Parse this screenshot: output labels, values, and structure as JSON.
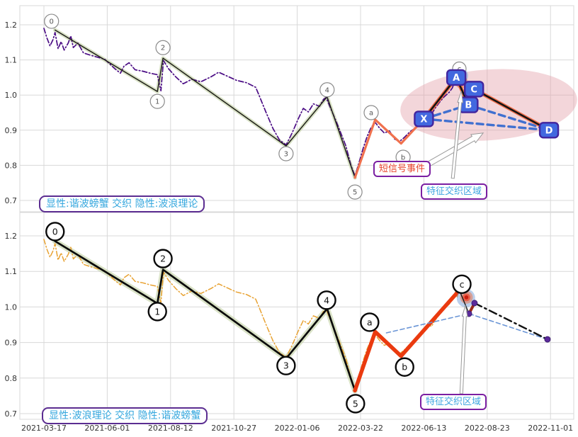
{
  "axes": {
    "x_dates": [
      "2021-03-17",
      "2021-06-01",
      "2021-08-12",
      "2021-10-27",
      "2022-01-06",
      "2022-03-22",
      "2022-06-13",
      "2022-08-23",
      "2022-11-01"
    ],
    "y_ticks": [
      "1.2",
      "1.1",
      "1.0",
      "0.9",
      "0.8",
      "0.7"
    ],
    "ylim": [
      0.7,
      1.2
    ]
  },
  "panel_top": {
    "legend": "显性:谐波螃蟹 交织 隐性:波浪理论",
    "annotation_event": "短信号事件",
    "annotation_region": "特征交织区域"
  },
  "panel_bottom": {
    "legend": "显性:波浪理论 交织 隐性:谐波螃蟹",
    "annotation_region": "特征交织区域"
  },
  "colors": {
    "price_top": "#4B0D85",
    "price_bottom": "#E8A232",
    "impulse_top": "#20201A",
    "impulse_bottom": "#0A0A0A",
    "impulse_glow": "#C5D2A8",
    "correction_top": "#F0714E",
    "correction_bottom": "#EA3A0F",
    "crab_black": "#141414",
    "crab_glow": "#F0714E",
    "dashed_blue": "#4070D0",
    "dashed_blue_thin": "#6A95D6",
    "box_fill": "#4268DF",
    "box_border": "#42259E",
    "ellipse_fill": "rgba(228,164,173,0.45)",
    "blue_halo": "rgba(120,160,215,0.50)",
    "purple_dot": "#5B2A9B",
    "dark_red_seg": "#9B2B1A",
    "grid": "#d8d8d8"
  },
  "chart_data": [
    {
      "type": "line",
      "panel": "top",
      "title": "显性:谐波螃蟹 交织 隐性:波浪理论",
      "ylim": [
        0.7,
        1.2
      ],
      "price_points": [
        [
          0.0,
          1.19
        ],
        [
          0.006,
          1.162
        ],
        [
          0.012,
          1.14
        ],
        [
          0.018,
          1.158
        ],
        [
          0.022,
          1.178
        ],
        [
          0.028,
          1.132
        ],
        [
          0.034,
          1.152
        ],
        [
          0.04,
          1.128
        ],
        [
          0.048,
          1.148
        ],
        [
          0.053,
          1.168
        ],
        [
          0.058,
          1.135
        ],
        [
          0.067,
          1.148
        ],
        [
          0.078,
          1.12
        ],
        [
          0.095,
          1.112
        ],
        [
          0.12,
          1.102
        ],
        [
          0.14,
          1.075
        ],
        [
          0.151,
          1.062
        ],
        [
          0.158,
          1.082
        ],
        [
          0.168,
          1.092
        ],
        [
          0.18,
          1.072
        ],
        [
          0.195,
          1.068
        ],
        [
          0.21,
          1.062
        ],
        [
          0.224,
          1.058
        ],
        [
          0.228,
          1.03
        ],
        [
          0.231,
          1.012
        ],
        [
          0.236,
          1.098
        ],
        [
          0.246,
          1.075
        ],
        [
          0.26,
          1.052
        ],
        [
          0.275,
          1.032
        ],
        [
          0.292,
          1.045
        ],
        [
          0.31,
          1.038
        ],
        [
          0.33,
          1.052
        ],
        [
          0.345,
          1.065
        ],
        [
          0.36,
          1.055
        ],
        [
          0.38,
          1.042
        ],
        [
          0.4,
          1.035
        ],
        [
          0.418,
          1.022
        ],
        [
          0.425,
          0.998
        ],
        [
          0.438,
          0.952
        ],
        [
          0.452,
          0.905
        ],
        [
          0.465,
          0.872
        ],
        [
          0.478,
          0.858
        ],
        [
          0.49,
          0.892
        ],
        [
          0.502,
          0.932
        ],
        [
          0.512,
          0.962
        ],
        [
          0.522,
          0.952
        ],
        [
          0.532,
          0.975
        ],
        [
          0.544,
          0.968
        ],
        [
          0.552,
          0.988
        ],
        [
          0.557,
          0.993
        ],
        [
          0.566,
          0.962
        ],
        [
          0.576,
          0.928
        ],
        [
          0.586,
          0.892
        ],
        [
          0.596,
          0.855
        ],
        [
          0.606,
          0.8
        ],
        [
          0.614,
          0.77
        ],
        [
          0.622,
          0.808
        ],
        [
          0.63,
          0.848
        ],
        [
          0.638,
          0.882
        ],
        [
          0.646,
          0.908
        ],
        [
          0.654,
          0.922
        ],
        [
          0.663,
          0.905
        ],
        [
          0.672,
          0.892
        ],
        [
          0.682,
          0.898
        ],
        [
          0.692,
          0.875
        ],
        [
          0.702,
          0.868
        ],
        [
          0.712,
          0.88
        ],
        [
          0.722,
          0.895
        ],
        [
          0.732,
          0.905
        ],
        [
          0.742,
          0.92
        ],
        [
          0.75,
          0.938
        ],
        [
          0.758,
          0.952
        ],
        [
          0.765,
          0.945
        ],
        [
          0.772,
          0.962
        ],
        [
          0.78,
          0.978
        ],
        [
          0.79,
          0.995
        ],
        [
          0.8,
          1.008
        ],
        [
          0.806,
          1.02
        ],
        [
          0.812,
          1.042
        ],
        [
          0.816,
          1.028
        ],
        [
          0.82,
          1.05
        ],
        [
          0.824,
          1.038
        ]
      ],
      "impulse_points": [
        [
          0.022,
          1.185
        ],
        [
          0.224,
          1.01
        ],
        [
          0.235,
          1.105
        ],
        [
          0.478,
          0.855
        ],
        [
          0.559,
          0.995
        ],
        [
          0.614,
          0.765
        ]
      ],
      "correction_points": [
        [
          0.614,
          0.765
        ],
        [
          0.654,
          0.93
        ],
        [
          0.705,
          0.862
        ],
        [
          0.75,
          0.932
        ]
      ],
      "wave_labels": [
        {
          "t": "0",
          "f": 0.015,
          "v": 1.21
        },
        {
          "t": "1",
          "f": 0.224,
          "v": 0.982
        },
        {
          "t": "2",
          "f": 0.235,
          "v": 1.135
        },
        {
          "t": "3",
          "f": 0.478,
          "v": 0.833
        },
        {
          "t": "4",
          "f": 0.559,
          "v": 1.015
        },
        {
          "t": "5",
          "f": 0.614,
          "v": 0.724
        },
        {
          "t": "a",
          "f": 0.646,
          "v": 0.95
        },
        {
          "t": "b",
          "f": 0.709,
          "v": 0.823
        }
      ],
      "hidden_wave_label": {
        "t": "c",
        "f": 0.82,
        "v": 1.075
      },
      "harmonic": {
        "labels": [
          "X",
          "A",
          "B",
          "C",
          "D"
        ],
        "points": [
          [
            0.75,
            0.932
          ],
          [
            0.814,
            1.05
          ],
          [
            0.838,
            0.972
          ],
          [
            0.849,
            1.017
          ],
          [
            0.997,
            0.9
          ]
        ],
        "dashed_pairs": [
          [
            0,
            2
          ],
          [
            2,
            4
          ],
          [
            0,
            4
          ]
        ]
      },
      "ellipse": {
        "f": 0.878,
        "v": 0.972,
        "rx": 125,
        "ry": 50,
        "rot": -4
      },
      "blue_halo": {
        "f": 0.822,
        "v": 1.055,
        "r": 11
      },
      "bullseye": {
        "f": 0.824,
        "v": 1.037
      },
      "arrows": [
        {
          "tail": [
            0.761,
            0.805
          ],
          "head": [
            0.867,
            0.892
          ],
          "w": 7
        },
        {
          "tail": [
            0.807,
            0.763
          ],
          "head": [
            0.824,
            1.011
          ],
          "w": 4
        }
      ]
    },
    {
      "type": "line",
      "panel": "bottom",
      "title": "显性:波浪理论 交织 隐性:谐波螃蟹",
      "ylim": [
        0.7,
        1.2
      ],
      "price_points": "same_as_top",
      "impulse_points": [
        [
          0.022,
          1.185
        ],
        [
          0.224,
          1.01
        ],
        [
          0.235,
          1.105
        ],
        [
          0.478,
          0.855
        ],
        [
          0.559,
          0.995
        ],
        [
          0.614,
          0.765
        ]
      ],
      "correction_points": [
        [
          0.614,
          0.765
        ],
        [
          0.654,
          0.93
        ],
        [
          0.705,
          0.862
        ],
        [
          0.82,
          1.047
        ]
      ],
      "wave_labels": [
        {
          "t": "0",
          "f": 0.022,
          "v": 1.212
        },
        {
          "t": "1",
          "f": 0.224,
          "v": 0.987
        },
        {
          "t": "2",
          "f": 0.235,
          "v": 1.136
        },
        {
          "t": "3",
          "f": 0.478,
          "v": 0.835
        },
        {
          "t": "4",
          "f": 0.558,
          "v": 1.019
        },
        {
          "t": "5",
          "f": 0.615,
          "v": 0.728
        },
        {
          "t": "a",
          "f": 0.643,
          "v": 0.957
        },
        {
          "t": "b",
          "f": 0.712,
          "v": 0.831
        },
        {
          "t": "c",
          "f": 0.825,
          "v": 1.064
        }
      ],
      "blue_halo": {
        "f": 0.833,
        "v": 1.025,
        "r": 13
      },
      "bullseye": {
        "f": 0.834,
        "v": 1.027
      },
      "hidden_pattern": {
        "dashed_polyline": [
          [
            0.676,
            0.927
          ],
          [
            0.839,
            0.981
          ],
          [
            0.994,
            0.909
          ]
        ],
        "black_segment": [
          [
            0.82,
            1.047
          ],
          [
            0.839,
            0.981
          ]
        ],
        "dark_red_segment": [
          [
            0.839,
            0.981
          ],
          [
            0.85,
            1.011
          ]
        ],
        "dashdot_line": [
          [
            0.85,
            1.011
          ],
          [
            0.994,
            0.909
          ]
        ],
        "dots": [
          [
            0.85,
            1.011
          ],
          [
            0.839,
            0.981
          ],
          [
            0.994,
            0.909
          ]
        ]
      },
      "arrows": [
        {
          "tail": [
            0.824,
            0.756
          ],
          "head": [
            0.832,
            1.005
          ],
          "w": 4
        }
      ]
    }
  ]
}
